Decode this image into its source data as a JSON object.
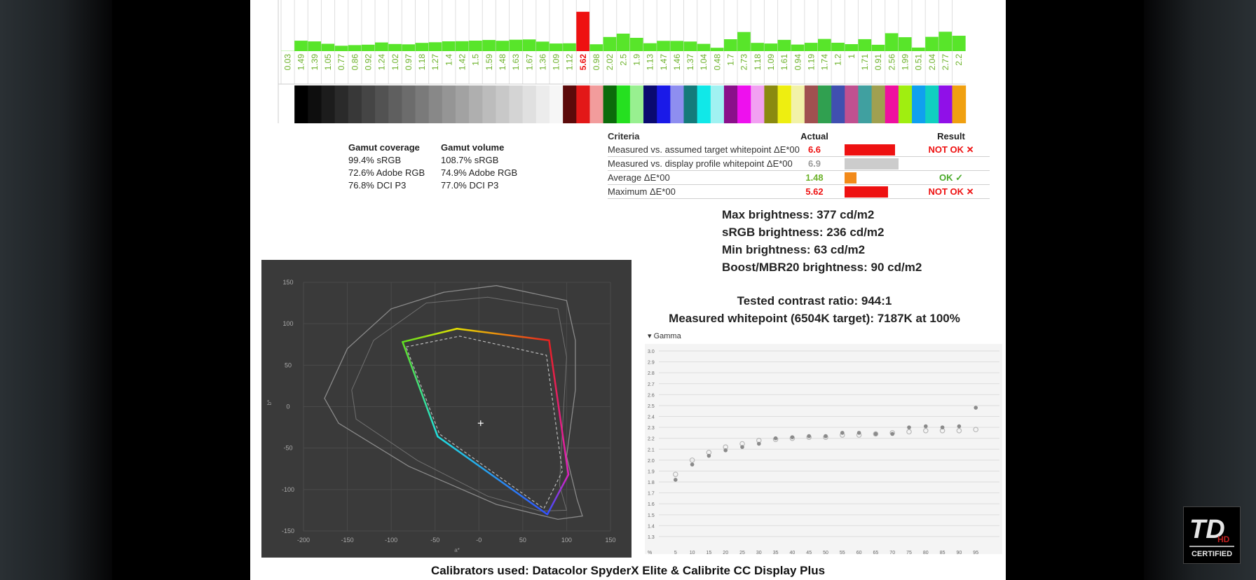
{
  "delta_e_chart": {
    "type": "bar",
    "values": [
      0.03,
      1.49,
      1.39,
      1.05,
      0.77,
      0.86,
      0.92,
      1.24,
      1.02,
      0.97,
      1.18,
      1.27,
      1.4,
      1.42,
      1.5,
      1.59,
      1.48,
      1.63,
      1.67,
      1.36,
      1.09,
      1.12,
      5.62,
      0.98,
      2.02,
      2.5,
      1.9,
      1.13,
      1.47,
      1.46,
      1.37,
      1.04,
      0.48,
      1.7,
      2.73,
      1.18,
      1.09,
      1.61,
      0.94,
      1.19,
      1.74,
      1.2,
      1,
      1.71,
      0.91,
      2.56,
      1.99,
      0.51,
      2.04,
      2.77,
      2.2
    ],
    "labels": [
      "0.03",
      "1.49",
      "1.39",
      "1.05",
      "0.77",
      "0.86",
      "0.92",
      "1.24",
      "1.02",
      "0.97",
      "1.18",
      "1.27",
      "1.4",
      "1.42",
      "1.5",
      "1.59",
      "1.48",
      "1.63",
      "1.67",
      "1.36",
      "1.09",
      "1.12",
      "5.62",
      "0.98",
      "2.02",
      "2.5",
      "1.9",
      "1.13",
      "1.47",
      "1.46",
      "1.37",
      "1.04",
      "0.48",
      "1.7",
      "2.73",
      "1.18",
      "1.09",
      "1.61",
      "0.94",
      "1.19",
      "1.74",
      "1.2",
      "1",
      "1.71",
      "0.91",
      "2.56",
      "1.99",
      "0.51",
      "2.04",
      "2.77",
      "2.2"
    ],
    "swatches": [
      "#ffffff",
      "#000000",
      "#0e0e0e",
      "#1c1c1c",
      "#2a2a2a",
      "#383838",
      "#454545",
      "#525252",
      "#5f5f5f",
      "#6c6c6c",
      "#7a7a7a",
      "#888888",
      "#959595",
      "#a2a2a2",
      "#afafaf",
      "#bcbcbc",
      "#c8c8c8",
      "#d4d4d4",
      "#e0e0e0",
      "#ececec",
      "#f6f6f6",
      "#5c0a0a",
      "#e31818",
      "#f29c9c",
      "#0b6b0b",
      "#25e020",
      "#98f090",
      "#0a0a70",
      "#1a1ae8",
      "#8e8ef0",
      "#147a7a",
      "#10e8e8",
      "#a0f2f2",
      "#8a108a",
      "#ee10ee",
      "#f2a0f2",
      "#8a8a10",
      "#eeee10",
      "#f2f2a8",
      "#a05050",
      "#30a050",
      "#4050b0",
      "#c05090",
      "#40a0a0",
      "#a0a050",
      "#ee10a0",
      "#a0ee10",
      "#10a0ee",
      "#10d0c0",
      "#9010e8",
      "#f0a010"
    ],
    "bar_color": "#58e52a",
    "highlight_color": "#ee1111"
  },
  "gamut_coverage": {
    "title": "Gamut coverage",
    "lines": [
      "99.4% sRGB",
      "72.6% Adobe RGB",
      "76.8% DCI P3"
    ]
  },
  "gamut_volume": {
    "title": "Gamut volume",
    "lines": [
      "108.7% sRGB",
      "74.9% Adobe RGB",
      "77.0% DCI P3"
    ]
  },
  "criteria": {
    "headers": {
      "criteria": "Criteria",
      "actual": "Actual",
      "result": "Result"
    },
    "rows": [
      {
        "label": "Measured vs. assumed target whitepoint ΔE*00",
        "actual": "6.6",
        "actual_color": "#ee1111",
        "bar_fraction": 0.85,
        "bar_color": "#ee1111",
        "result": "NOT OK ✕",
        "result_color": "#ee1111"
      },
      {
        "label": "Measured vs. display profile whitepoint ΔE*00",
        "actual": "6.9",
        "actual_color": "#9a9a9a",
        "bar_fraction": 0.9,
        "bar_color": "#cccccc",
        "result": "",
        "result_color": "#222222"
      },
      {
        "label": "Average ΔE*00",
        "actual": "1.48",
        "actual_color": "#6cb22a",
        "bar_fraction": 0.2,
        "bar_color": "#f28a1a",
        "result": "OK ✓",
        "result_color": "#4aaa2a"
      },
      {
        "label": "Maximum ΔE*00",
        "actual": "5.62",
        "actual_color": "#ee1111",
        "bar_fraction": 0.73,
        "bar_color": "#ee1111",
        "result": "NOT OK ✕",
        "result_color": "#ee1111"
      }
    ]
  },
  "brightness": [
    "Max brightness: 377 cd/m2",
    "sRGB brightness: 236 cd/m2",
    "Min brightness: 63 cd/m2",
    "Boost/MBR20 brightness: 90 cd/m2"
  ],
  "contrast": {
    "ratio": "Tested contrast ratio: 944:1",
    "whitepoint": "Measured whitepoint (6504K target): 7187K at 100%"
  },
  "gamut_plot": {
    "type": "scatter",
    "xlabel": "a*",
    "ylabel": "b*",
    "xlim": [
      -200,
      150
    ],
    "ylim": [
      -150,
      150
    ],
    "xticks": [
      -200,
      -150,
      -100,
      -50,
      0,
      50,
      100,
      150
    ],
    "xtick_labels": [
      "-200",
      "-150",
      "-100",
      "-50",
      "-0",
      "50",
      "100",
      "150"
    ],
    "yticks": [
      -150,
      -100,
      -50,
      0,
      50,
      100,
      150
    ],
    "display_gamut": {
      "red": [
        80,
        80
      ],
      "yellow": [
        -25,
        94
      ],
      "green": [
        -87,
        78
      ],
      "cyan": [
        -47,
        -36
      ],
      "blue": [
        78,
        -130
      ],
      "magenta": [
        102,
        -82
      ]
    },
    "target_gamut": {
      "red": [
        77,
        62
      ],
      "yellow": [
        -22,
        85
      ],
      "green": [
        -83,
        72
      ],
      "cyan": [
        -45,
        -33
      ],
      "blue": [
        74,
        -123
      ],
      "magenta": [
        95,
        -78
      ]
    },
    "white_point": [
      2,
      -20
    ]
  },
  "gamma_plot": {
    "type": "scatter",
    "title": "Gamma",
    "x": [
      5,
      10,
      15,
      20,
      25,
      30,
      35,
      40,
      45,
      50,
      55,
      60,
      65,
      70,
      75,
      80,
      85,
      90,
      95
    ],
    "measured": [
      1.82,
      1.96,
      2.04,
      2.09,
      2.12,
      2.15,
      2.2,
      2.21,
      2.22,
      2.22,
      2.25,
      2.25,
      2.24,
      2.24,
      2.3,
      2.31,
      2.3,
      2.31,
      2.48
    ],
    "reference": [
      1.87,
      2.0,
      2.07,
      2.12,
      2.15,
      2.18,
      2.19,
      2.2,
      2.21,
      2.21,
      2.23,
      2.23,
      2.24,
      2.25,
      2.26,
      2.27,
      2.27,
      2.27,
      2.28
    ],
    "ylim": [
      1.3,
      3.0
    ],
    "yticks": [
      "3.0",
      "2.9",
      "2.8",
      "2.7",
      "2.6",
      "2.5",
      "2.4",
      "2.3",
      "2.2",
      "2.1",
      "2.0",
      "1.9",
      "1.8",
      "1.7",
      "1.6",
      "1.5",
      "1.4",
      "1.3"
    ],
    "xtick_first": "%"
  },
  "calibrators": "Calibrators used: Datacolor SpyderX Elite & Calibrite CC Display Plus",
  "logo": {
    "mark": "TD",
    "sub": "HD",
    "label": "CERTIFIED"
  }
}
